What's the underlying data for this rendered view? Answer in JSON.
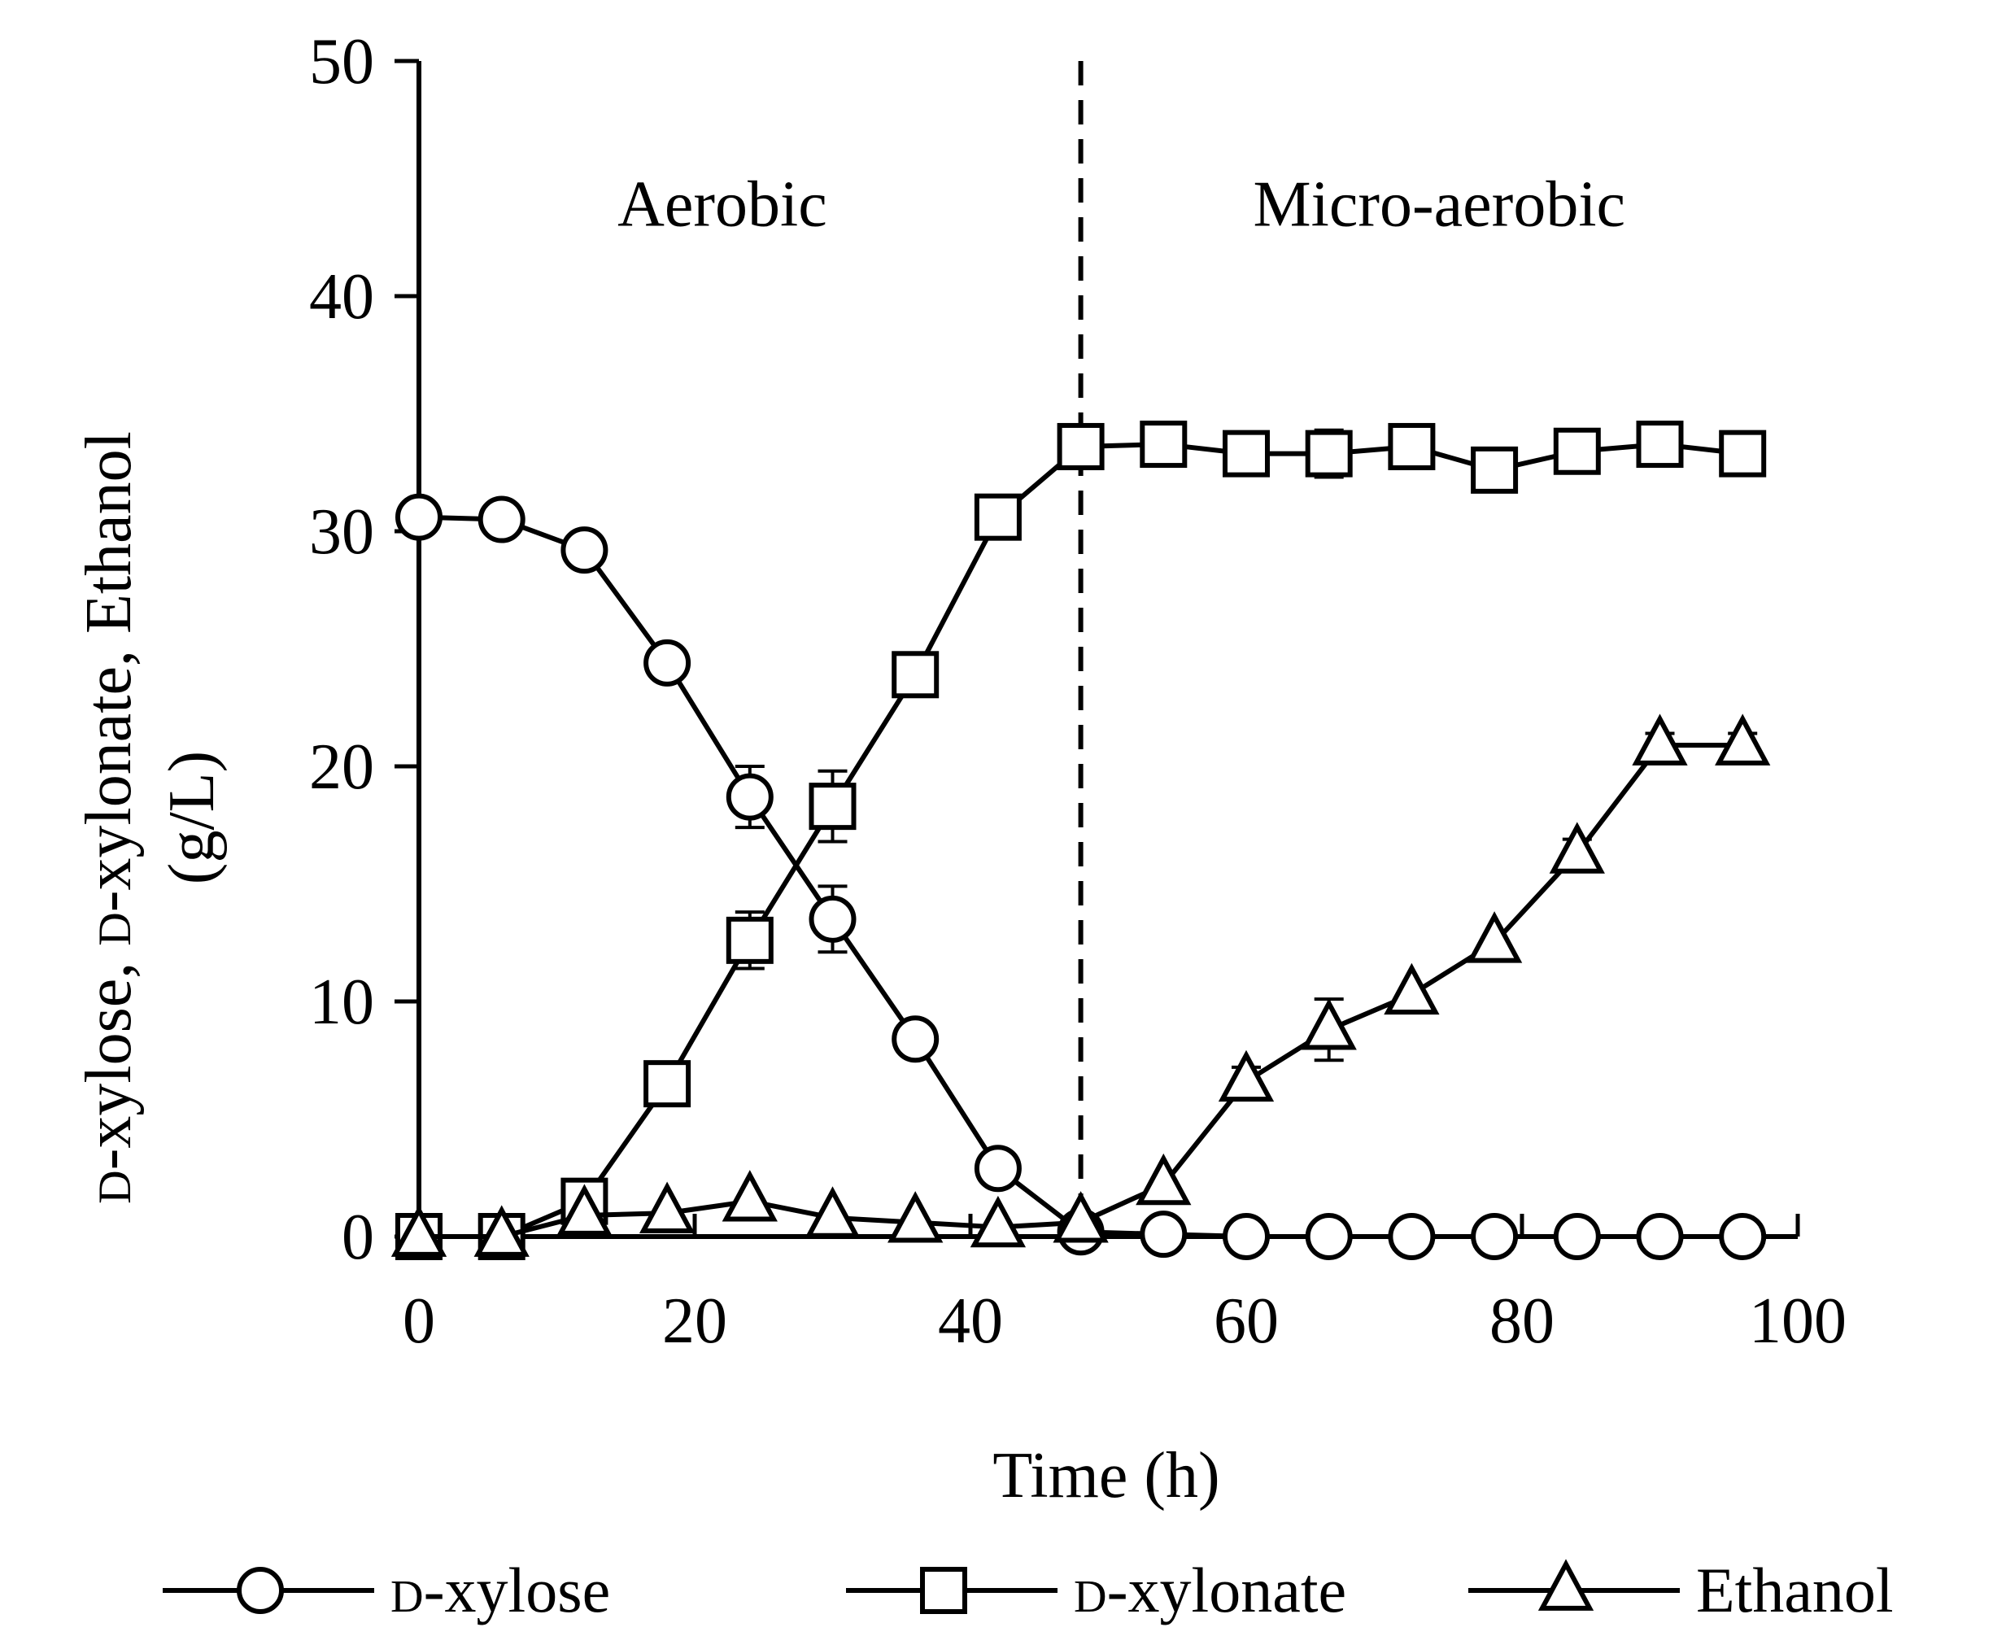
{
  "chart_data": {
    "type": "line",
    "x": [
      0,
      6,
      12,
      18,
      24,
      30,
      36,
      42,
      48,
      54,
      60,
      66,
      72,
      78,
      84,
      90,
      96
    ],
    "series": [
      {
        "name": "D-xylose",
        "marker": "circle",
        "values": [
          30.6,
          30.5,
          29.2,
          24.4,
          18.7,
          13.5,
          8.4,
          2.9,
          0.2,
          0.1,
          0.0,
          0.0,
          0.0,
          0.0,
          0.0,
          0.0,
          0.0
        ],
        "errors": [
          0,
          0,
          0,
          0,
          1.3,
          1.4,
          0,
          0,
          0,
          0,
          0,
          0,
          0,
          0,
          0,
          0,
          0
        ]
      },
      {
        "name": "D-xylonate",
        "marker": "square",
        "values": [
          0.0,
          0.0,
          1.5,
          6.5,
          12.6,
          18.3,
          23.9,
          30.6,
          33.6,
          33.7,
          33.3,
          33.3,
          33.6,
          32.6,
          33.4,
          33.7,
          33.3
        ],
        "errors": [
          0,
          0,
          0,
          0,
          1.2,
          1.5,
          0.6,
          0.8,
          0,
          0,
          0,
          1.0,
          0,
          0,
          0,
          0,
          0
        ]
      },
      {
        "name": "Ethanol",
        "marker": "triangle",
        "values": [
          0.0,
          0.0,
          0.9,
          1.0,
          1.5,
          0.8,
          0.6,
          0.4,
          0.6,
          2.2,
          6.6,
          8.8,
          10.3,
          12.5,
          16.3,
          20.9,
          20.9
        ],
        "errors": [
          0,
          0,
          0,
          0,
          0,
          0,
          0,
          0,
          0,
          0,
          0.6,
          1.3,
          0,
          0,
          0.6,
          0.5,
          0.5
        ]
      }
    ],
    "xlabel": "Time (h)",
    "ylabel_line1": "D-xylose, D-xylonate, Ethanol",
    "ylabel_line2": "(g/L)",
    "xlim": [
      0,
      100
    ],
    "ylim": [
      0,
      50
    ],
    "xticks": [
      0,
      20,
      40,
      60,
      80,
      100
    ],
    "yticks": [
      0,
      10,
      20,
      30,
      40,
      50
    ],
    "divider_x": 48,
    "phases": [
      {
        "label": "Aerobic",
        "x_center": 22,
        "y": 43
      },
      {
        "label": "Micro-aerobic",
        "x_center": 74,
        "y": 43
      }
    ],
    "legend_position": "bottom",
    "grid": false
  }
}
